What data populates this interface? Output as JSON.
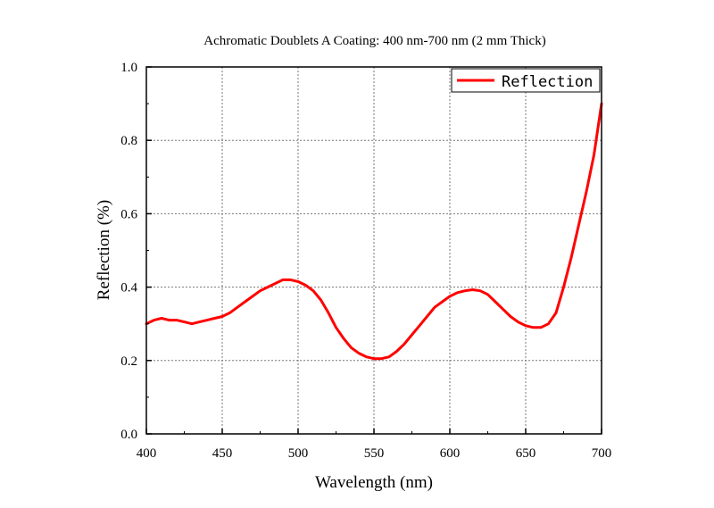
{
  "chart_data": {
    "type": "line",
    "title": "Achromatic Doublets A Coating: 400 nm-700 nm (2 mm Thick)",
    "xlabel": "Wavelength (nm)",
    "ylabel": "Reflection (%)",
    "xlim": [
      400,
      700
    ],
    "ylim": [
      0.0,
      1.0
    ],
    "xticks": [
      "400",
      "450",
      "500",
      "550",
      "600",
      "650",
      "700"
    ],
    "yticks": [
      "0.0",
      "0.2",
      "0.4",
      "0.6",
      "0.8",
      "1.0"
    ],
    "grid": true,
    "legend_position": "top-right",
    "series": [
      {
        "name": "Reflection",
        "color": "#ff0000",
        "x": [
          400,
          405,
          410,
          415,
          420,
          425,
          430,
          435,
          440,
          445,
          450,
          455,
          460,
          465,
          470,
          475,
          480,
          485,
          490,
          495,
          500,
          505,
          510,
          515,
          520,
          525,
          530,
          535,
          540,
          545,
          550,
          555,
          560,
          565,
          570,
          575,
          580,
          585,
          590,
          595,
          600,
          605,
          610,
          615,
          620,
          625,
          630,
          635,
          640,
          645,
          650,
          655,
          660,
          665,
          670,
          675,
          680,
          685,
          690,
          695,
          700
        ],
        "y": [
          0.3,
          0.31,
          0.315,
          0.31,
          0.31,
          0.305,
          0.3,
          0.305,
          0.31,
          0.315,
          0.32,
          0.33,
          0.345,
          0.36,
          0.375,
          0.39,
          0.4,
          0.41,
          0.42,
          0.42,
          0.415,
          0.405,
          0.39,
          0.365,
          0.33,
          0.29,
          0.26,
          0.235,
          0.22,
          0.21,
          0.205,
          0.205,
          0.21,
          0.225,
          0.245,
          0.27,
          0.295,
          0.32,
          0.345,
          0.36,
          0.375,
          0.385,
          0.39,
          0.393,
          0.39,
          0.38,
          0.36,
          0.34,
          0.32,
          0.305,
          0.295,
          0.29,
          0.29,
          0.3,
          0.33,
          0.4,
          0.48,
          0.57,
          0.66,
          0.76,
          0.9
        ]
      }
    ]
  }
}
